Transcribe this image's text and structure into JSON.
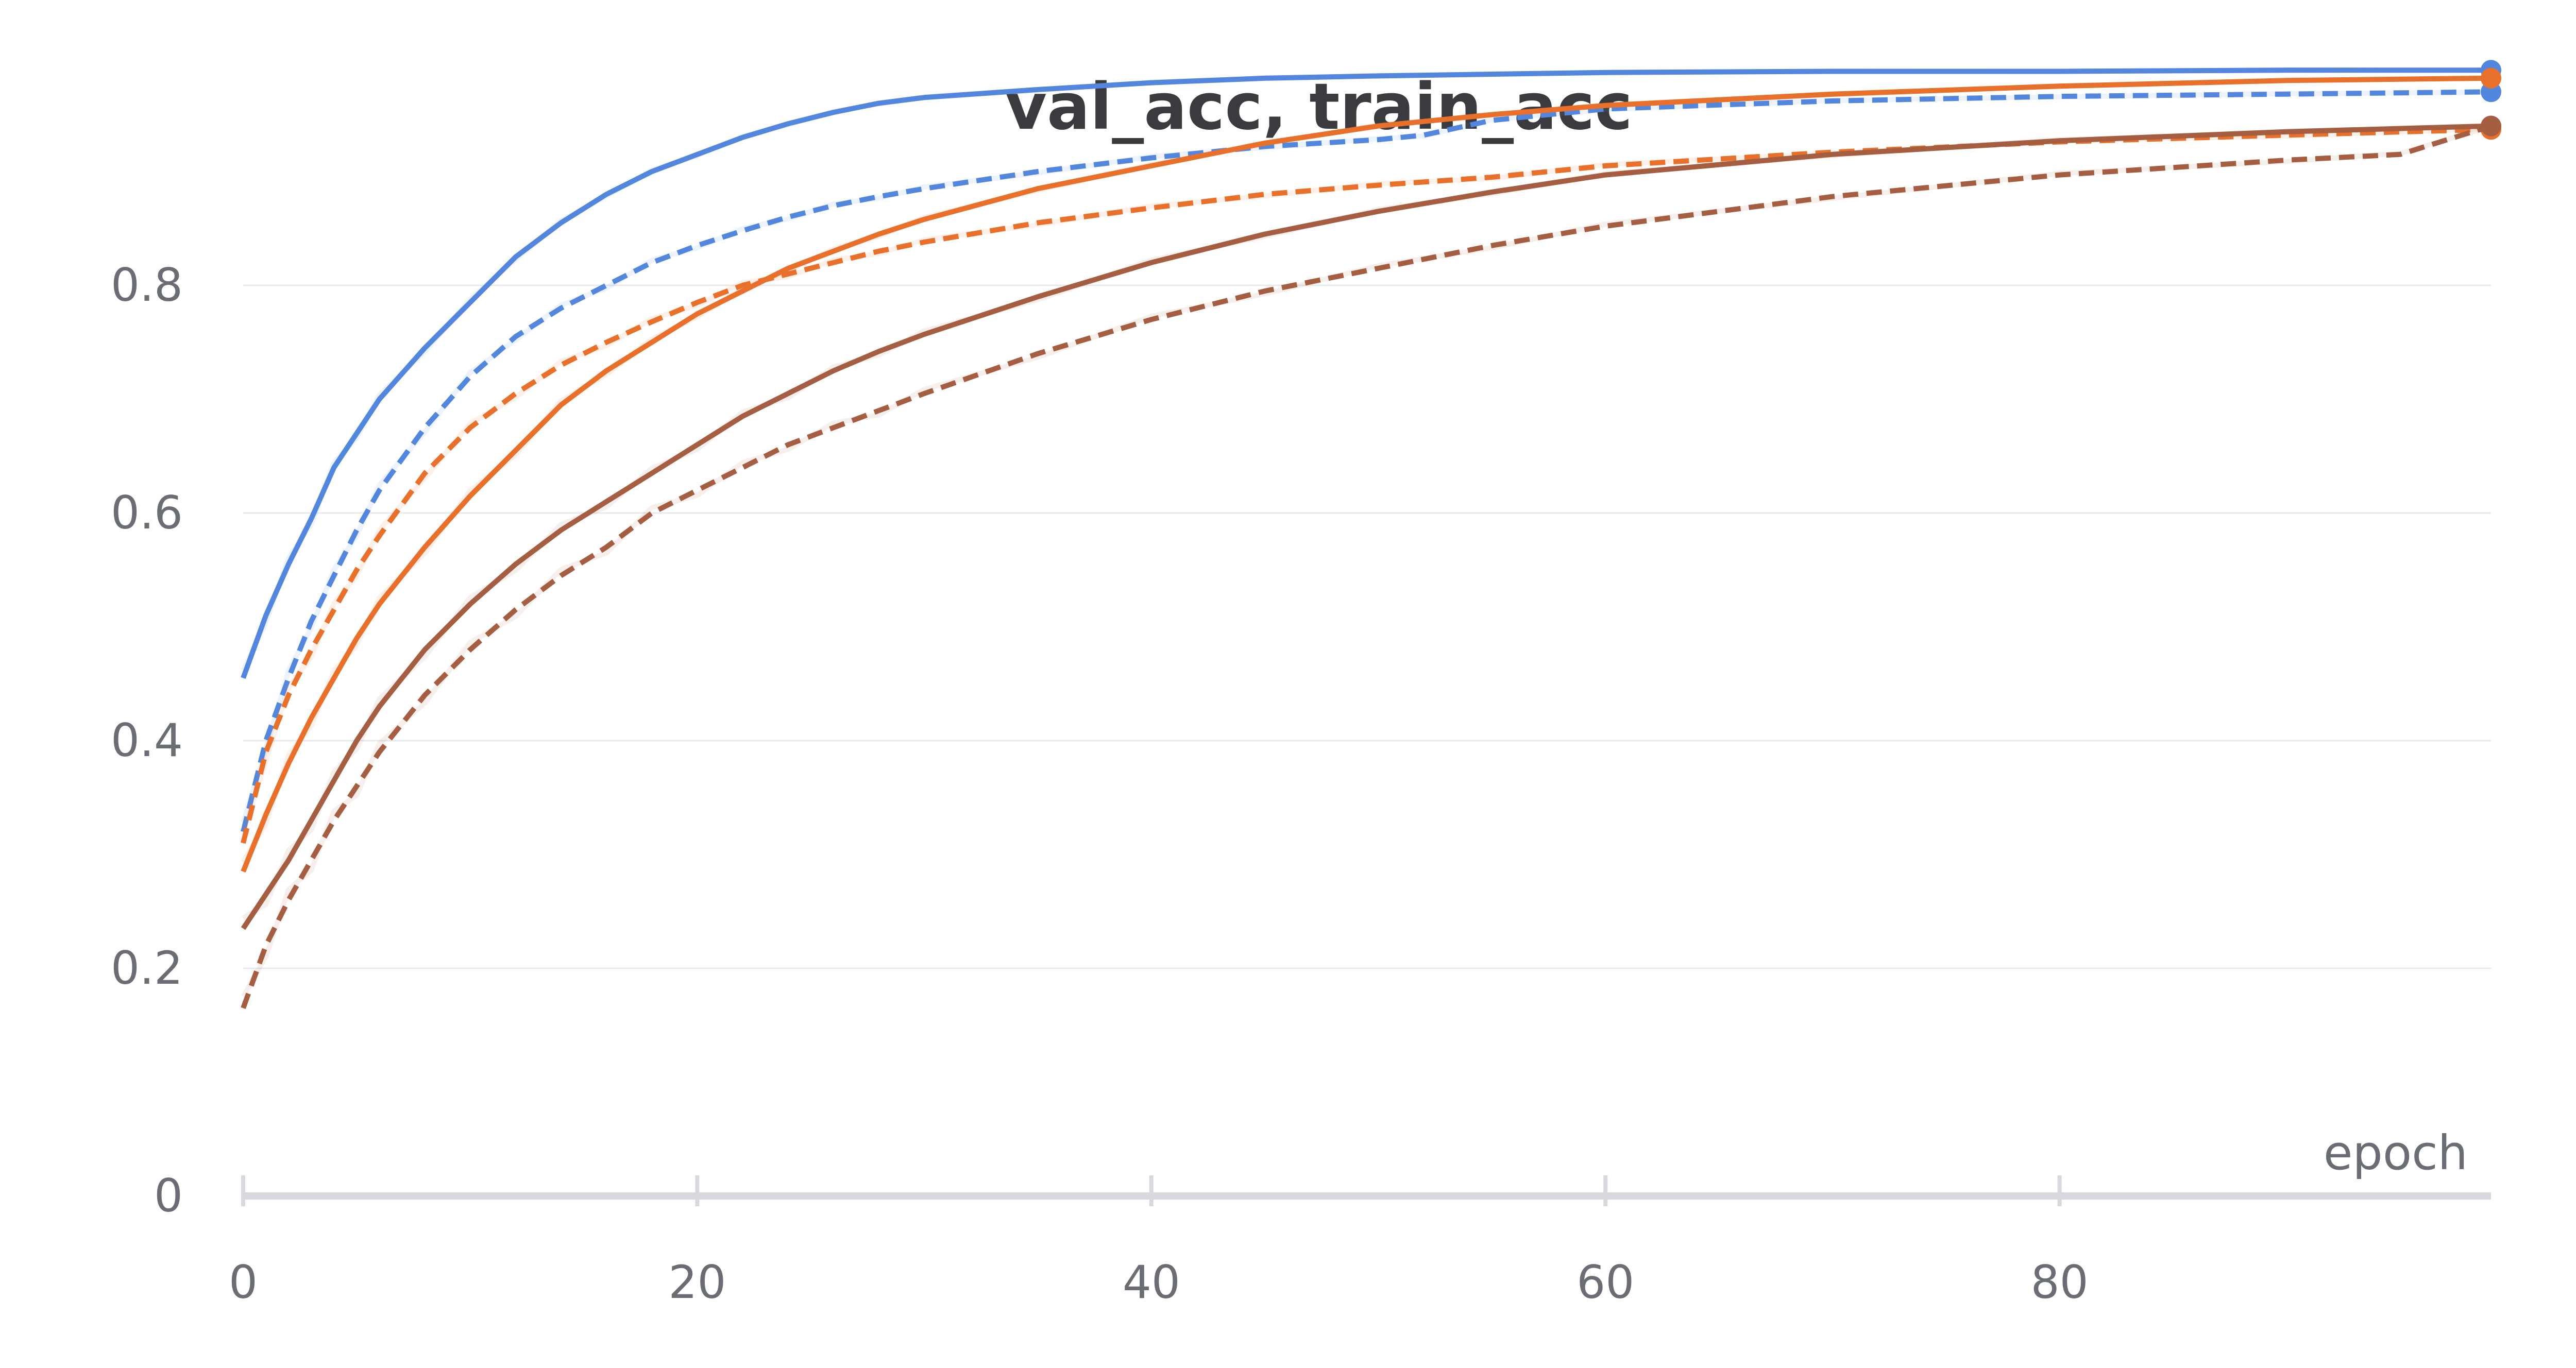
{
  "chart_data": {
    "type": "line",
    "title": "val_acc, train_acc",
    "xlabel": "epoch",
    "ylabel": "",
    "xlim": [
      0,
      99
    ],
    "ylim": [
      0,
      1.0
    ],
    "x_ticks": [
      0,
      20,
      40,
      60,
      80
    ],
    "y_ticks": [
      0,
      0.2,
      0.4,
      0.6,
      0.8
    ],
    "grid": true,
    "legend": "none",
    "colors": {
      "blue": "#5387dd",
      "orange": "#e8702a",
      "brown": "#a65e43"
    },
    "series": [
      {
        "color": "#5387dd",
        "style": "solid",
        "points": [
          [
            0,
            0.455
          ],
          [
            1,
            0.51
          ],
          [
            2,
            0.555
          ],
          [
            3,
            0.595
          ],
          [
            4,
            0.64
          ],
          [
            5,
            0.67
          ],
          [
            6,
            0.7
          ],
          [
            8,
            0.745
          ],
          [
            10,
            0.785
          ],
          [
            12,
            0.825
          ],
          [
            14,
            0.855
          ],
          [
            16,
            0.88
          ],
          [
            18,
            0.9
          ],
          [
            20,
            0.915
          ],
          [
            22,
            0.93
          ],
          [
            24,
            0.942
          ],
          [
            26,
            0.952
          ],
          [
            28,
            0.96
          ],
          [
            30,
            0.965
          ],
          [
            35,
            0.972
          ],
          [
            40,
            0.978
          ],
          [
            45,
            0.982
          ],
          [
            50,
            0.984
          ],
          [
            60,
            0.987
          ],
          [
            70,
            0.988
          ],
          [
            80,
            0.988
          ],
          [
            90,
            0.989
          ],
          [
            99,
            0.989
          ]
        ]
      },
      {
        "color": "#5387dd",
        "style": "dashed",
        "points": [
          [
            0,
            0.32
          ],
          [
            1,
            0.4
          ],
          [
            2,
            0.455
          ],
          [
            3,
            0.505
          ],
          [
            4,
            0.545
          ],
          [
            5,
            0.585
          ],
          [
            6,
            0.62
          ],
          [
            8,
            0.675
          ],
          [
            10,
            0.72
          ],
          [
            12,
            0.755
          ],
          [
            14,
            0.78
          ],
          [
            16,
            0.8
          ],
          [
            18,
            0.82
          ],
          [
            20,
            0.835
          ],
          [
            22,
            0.848
          ],
          [
            24,
            0.86
          ],
          [
            26,
            0.87
          ],
          [
            28,
            0.878
          ],
          [
            30,
            0.885
          ],
          [
            35,
            0.9
          ],
          [
            40,
            0.912
          ],
          [
            45,
            0.922
          ],
          [
            50,
            0.928
          ],
          [
            52,
            0.932
          ],
          [
            55,
            0.945
          ],
          [
            60,
            0.955
          ],
          [
            70,
            0.962
          ],
          [
            80,
            0.966
          ],
          [
            90,
            0.968
          ],
          [
            99,
            0.97
          ]
        ]
      },
      {
        "color": "#e8702a",
        "style": "solid",
        "points": [
          [
            0,
            0.285
          ],
          [
            1,
            0.335
          ],
          [
            2,
            0.38
          ],
          [
            3,
            0.42
          ],
          [
            4,
            0.455
          ],
          [
            5,
            0.49
          ],
          [
            6,
            0.52
          ],
          [
            8,
            0.57
          ],
          [
            10,
            0.615
          ],
          [
            12,
            0.655
          ],
          [
            14,
            0.695
          ],
          [
            16,
            0.725
          ],
          [
            18,
            0.75
          ],
          [
            20,
            0.775
          ],
          [
            22,
            0.795
          ],
          [
            24,
            0.815
          ],
          [
            26,
            0.83
          ],
          [
            28,
            0.845
          ],
          [
            30,
            0.858
          ],
          [
            35,
            0.885
          ],
          [
            40,
            0.905
          ],
          [
            45,
            0.925
          ],
          [
            50,
            0.94
          ],
          [
            55,
            0.95
          ],
          [
            60,
            0.958
          ],
          [
            70,
            0.968
          ],
          [
            80,
            0.975
          ],
          [
            90,
            0.98
          ],
          [
            99,
            0.982
          ]
        ]
      },
      {
        "color": "#e8702a",
        "style": "dashed",
        "points": [
          [
            0,
            0.31
          ],
          [
            1,
            0.39
          ],
          [
            2,
            0.44
          ],
          [
            3,
            0.48
          ],
          [
            4,
            0.515
          ],
          [
            5,
            0.55
          ],
          [
            6,
            0.58
          ],
          [
            8,
            0.635
          ],
          [
            10,
            0.675
          ],
          [
            12,
            0.705
          ],
          [
            14,
            0.73
          ],
          [
            16,
            0.75
          ],
          [
            18,
            0.768
          ],
          [
            20,
            0.785
          ],
          [
            22,
            0.8
          ],
          [
            24,
            0.81
          ],
          [
            26,
            0.82
          ],
          [
            28,
            0.83
          ],
          [
            30,
            0.838
          ],
          [
            35,
            0.855
          ],
          [
            40,
            0.868
          ],
          [
            45,
            0.88
          ],
          [
            50,
            0.888
          ],
          [
            55,
            0.895
          ],
          [
            60,
            0.905
          ],
          [
            70,
            0.917
          ],
          [
            80,
            0.926
          ],
          [
            90,
            0.932
          ],
          [
            99,
            0.937
          ]
        ]
      },
      {
        "color": "#a65e43",
        "style": "solid",
        "points": [
          [
            0,
            0.235
          ],
          [
            1,
            0.265
          ],
          [
            2,
            0.295
          ],
          [
            3,
            0.33
          ],
          [
            4,
            0.365
          ],
          [
            5,
            0.4
          ],
          [
            6,
            0.43
          ],
          [
            8,
            0.48
          ],
          [
            10,
            0.52
          ],
          [
            12,
            0.555
          ],
          [
            14,
            0.585
          ],
          [
            16,
            0.61
          ],
          [
            18,
            0.635
          ],
          [
            20,
            0.66
          ],
          [
            22,
            0.685
          ],
          [
            24,
            0.705
          ],
          [
            26,
            0.725
          ],
          [
            28,
            0.742
          ],
          [
            30,
            0.757
          ],
          [
            35,
            0.79
          ],
          [
            40,
            0.82
          ],
          [
            45,
            0.845
          ],
          [
            50,
            0.865
          ],
          [
            55,
            0.882
          ],
          [
            60,
            0.897
          ],
          [
            70,
            0.915
          ],
          [
            80,
            0.927
          ],
          [
            90,
            0.935
          ],
          [
            99,
            0.94
          ]
        ]
      },
      {
        "color": "#a65e43",
        "style": "dashed",
        "points": [
          [
            0,
            0.165
          ],
          [
            1,
            0.22
          ],
          [
            2,
            0.26
          ],
          [
            3,
            0.295
          ],
          [
            4,
            0.33
          ],
          [
            5,
            0.36
          ],
          [
            6,
            0.39
          ],
          [
            8,
            0.44
          ],
          [
            10,
            0.48
          ],
          [
            12,
            0.515
          ],
          [
            14,
            0.545
          ],
          [
            16,
            0.57
          ],
          [
            18,
            0.6
          ],
          [
            20,
            0.62
          ],
          [
            22,
            0.64
          ],
          [
            24,
            0.66
          ],
          [
            26,
            0.675
          ],
          [
            28,
            0.69
          ],
          [
            30,
            0.705
          ],
          [
            35,
            0.74
          ],
          [
            40,
            0.77
          ],
          [
            45,
            0.795
          ],
          [
            50,
            0.815
          ],
          [
            55,
            0.835
          ],
          [
            60,
            0.852
          ],
          [
            70,
            0.878
          ],
          [
            80,
            0.897
          ],
          [
            90,
            0.91
          ],
          [
            95,
            0.915
          ],
          [
            99,
            0.94
          ]
        ]
      }
    ]
  }
}
